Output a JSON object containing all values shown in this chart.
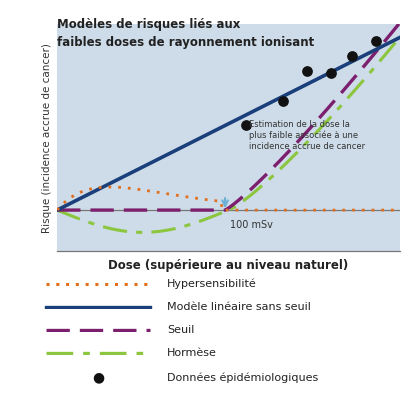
{
  "title_line1": "Modèles de risques liés aux",
  "title_line2": "faibles doses de rayonnement ionisant",
  "xlabel": "Dose (supérieure au niveau naturel)",
  "ylabel": "Risque (incidence accrue de cancer)",
  "bg_color": "#cddce8",
  "linear_color": "#1a3f7a",
  "hypersens_color": "#e07020",
  "seuil_color": "#7b1f6e",
  "hormese_color": "#8cc63f",
  "dot_color": "#111111",
  "annotation_text": "Estimation de la dose la\nplus faible associée à une\nincidence accrue de cancer",
  "threshold_label": "100 mSv",
  "legend_items": [
    {
      "label": "Hypersensibilité",
      "color": "#e07020",
      "style": "dotted"
    },
    {
      "label": "Modèle linéaire sans seuil",
      "color": "#1a3f7a",
      "style": "solid"
    },
    {
      "label": "Seuil",
      "color": "#7b1f6e",
      "style": "dashed"
    },
    {
      "label": "Hormèse",
      "color": "#8cc63f",
      "style": "dashdot"
    },
    {
      "label": "Données épidémiologiques",
      "color": "#111111",
      "style": "scatter"
    }
  ]
}
